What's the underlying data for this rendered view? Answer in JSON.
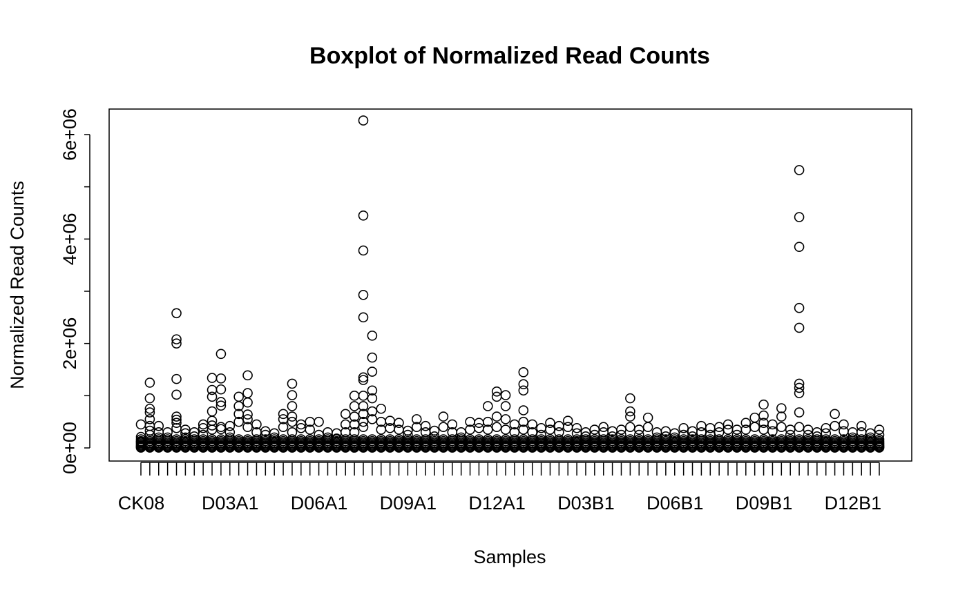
{
  "chart_data": {
    "type": "boxplot",
    "title": "Boxplot of Normalized Read Counts",
    "xlabel": "Samples",
    "ylabel": "Normalized Read Counts",
    "ylim": [
      -250000,
      6500000
    ],
    "y_ticks": [
      0,
      2000000,
      4000000,
      6000000
    ],
    "y_tick_labels": [
      "0e+00",
      "2e+06",
      "4e+06",
      "6e+06"
    ],
    "y_minor_ticks": [
      1000000,
      3000000,
      5000000
    ],
    "n_samples": 84,
    "x_tick_labels": [
      {
        "sample": 1,
        "label": "CK08"
      },
      {
        "sample": 11,
        "label": "D03A1"
      },
      {
        "sample": 21,
        "label": "D06A1"
      },
      {
        "sample": 31,
        "label": "D09A1"
      },
      {
        "sample": 41,
        "label": "D12A1"
      },
      {
        "sample": 51,
        "label": "D03B1"
      },
      {
        "sample": 61,
        "label": "D06B1"
      },
      {
        "sample": 71,
        "label": "D09B1"
      },
      {
        "sample": 81,
        "label": "D12B1"
      }
    ],
    "outliers": [
      {
        "sample": 1,
        "values": [
          450000,
          210000,
          120000
        ]
      },
      {
        "sample": 2,
        "values": [
          1250000,
          950000,
          750000,
          680000,
          550000,
          420000,
          330000,
          250000
        ]
      },
      {
        "sample": 3,
        "values": [
          420000,
          300000,
          200000
        ]
      },
      {
        "sample": 4,
        "values": [
          300000,
          200000
        ]
      },
      {
        "sample": 5,
        "values": [
          2580000,
          2080000,
          2000000,
          1320000,
          1020000,
          600000,
          540000,
          480000,
          380000
        ]
      },
      {
        "sample": 6,
        "values": [
          350000,
          280000,
          200000
        ]
      },
      {
        "sample": 7,
        "values": [
          300000,
          220000
        ]
      },
      {
        "sample": 8,
        "values": [
          450000,
          380000,
          250000
        ]
      },
      {
        "sample": 9,
        "values": [
          1340000,
          1110000,
          980000,
          700000,
          520000,
          430000,
          350000
        ]
      },
      {
        "sample": 10,
        "values": [
          1800000,
          1330000,
          1120000,
          880000,
          810000,
          400000,
          360000
        ]
      },
      {
        "sample": 11,
        "values": [
          420000,
          300000,
          200000
        ]
      },
      {
        "sample": 12,
        "values": [
          980000,
          800000,
          650000,
          500000
        ]
      },
      {
        "sample": 13,
        "values": [
          1390000,
          1050000,
          870000,
          640000,
          550000,
          400000
        ]
      },
      {
        "sample": 14,
        "values": [
          450000,
          300000
        ]
      },
      {
        "sample": 15,
        "values": [
          320000,
          250000
        ]
      },
      {
        "sample": 16,
        "values": [
          280000,
          200000
        ]
      },
      {
        "sample": 17,
        "values": [
          650000,
          550000,
          400000
        ]
      },
      {
        "sample": 18,
        "values": [
          1230000,
          1010000,
          800000,
          600000,
          500000,
          300000
        ]
      },
      {
        "sample": 19,
        "values": [
          450000,
          380000
        ]
      },
      {
        "sample": 20,
        "values": [
          500000,
          350000
        ]
      },
      {
        "sample": 21,
        "values": [
          500000,
          250000
        ]
      },
      {
        "sample": 22,
        "values": [
          300000,
          200000
        ]
      },
      {
        "sample": 23,
        "values": [
          280000,
          180000
        ]
      },
      {
        "sample": 24,
        "values": [
          650000,
          450000,
          300000
        ]
      },
      {
        "sample": 25,
        "values": [
          1000000,
          800000,
          600000,
          450000,
          300000
        ]
      },
      {
        "sample": 26,
        "values": [
          6270000,
          4450000,
          3780000,
          2930000,
          2500000,
          1350000,
          1300000,
          1000000,
          800000,
          650000,
          500000,
          400000
        ]
      },
      {
        "sample": 27,
        "values": [
          2150000,
          1730000,
          1460000,
          1100000,
          950000,
          700000,
          550000
        ]
      },
      {
        "sample": 28,
        "values": [
          750000,
          500000,
          350000
        ]
      },
      {
        "sample": 29,
        "values": [
          520000,
          380000
        ]
      },
      {
        "sample": 30,
        "values": [
          480000,
          350000
        ]
      },
      {
        "sample": 31,
        "values": [
          330000,
          250000
        ]
      },
      {
        "sample": 32,
        "values": [
          550000,
          400000
        ]
      },
      {
        "sample": 33,
        "values": [
          420000,
          300000
        ]
      },
      {
        "sample": 34,
        "values": [
          330000,
          220000
        ]
      },
      {
        "sample": 35,
        "values": [
          600000,
          400000
        ]
      },
      {
        "sample": 36,
        "values": [
          450000,
          300000
        ]
      },
      {
        "sample": 37,
        "values": [
          300000,
          200000
        ]
      },
      {
        "sample": 38,
        "values": [
          500000,
          350000
        ]
      },
      {
        "sample": 39,
        "values": [
          480000,
          380000
        ]
      },
      {
        "sample": 40,
        "values": [
          800000,
          500000,
          350000
        ]
      },
      {
        "sample": 41,
        "values": [
          1080000,
          980000,
          600000,
          400000
        ]
      },
      {
        "sample": 42,
        "values": [
          1010000,
          800000,
          550000,
          350000
        ]
      },
      {
        "sample": 43,
        "values": [
          450000,
          300000
        ]
      },
      {
        "sample": 44,
        "values": [
          1450000,
          1220000,
          1100000,
          720000,
          500000,
          350000
        ]
      },
      {
        "sample": 45,
        "values": [
          450000,
          300000
        ]
      },
      {
        "sample": 46,
        "values": [
          380000,
          250000
        ]
      },
      {
        "sample": 47,
        "values": [
          480000,
          350000
        ]
      },
      {
        "sample": 48,
        "values": [
          420000,
          300000
        ]
      },
      {
        "sample": 49,
        "values": [
          520000,
          400000
        ]
      },
      {
        "sample": 50,
        "values": [
          380000,
          280000
        ]
      },
      {
        "sample": 51,
        "values": [
          300000,
          220000
        ]
      },
      {
        "sample": 52,
        "values": [
          350000,
          250000
        ]
      },
      {
        "sample": 53,
        "values": [
          400000,
          300000
        ]
      },
      {
        "sample": 54,
        "values": [
          320000,
          220000
        ]
      },
      {
        "sample": 55,
        "values": [
          350000,
          250000
        ]
      },
      {
        "sample": 56,
        "values": [
          950000,
          700000,
          600000,
          400000
        ]
      },
      {
        "sample": 57,
        "values": [
          350000,
          250000
        ]
      },
      {
        "sample": 58,
        "values": [
          580000,
          400000
        ]
      },
      {
        "sample": 59,
        "values": [
          300000,
          200000
        ]
      },
      {
        "sample": 60,
        "values": [
          320000,
          220000
        ]
      },
      {
        "sample": 61,
        "values": [
          280000,
          200000
        ]
      },
      {
        "sample": 62,
        "values": [
          380000,
          250000
        ]
      },
      {
        "sample": 63,
        "values": [
          320000,
          220000
        ]
      },
      {
        "sample": 64,
        "values": [
          420000,
          300000
        ]
      },
      {
        "sample": 65,
        "values": [
          380000,
          250000
        ]
      },
      {
        "sample": 66,
        "values": [
          400000,
          300000
        ]
      },
      {
        "sample": 67,
        "values": [
          450000,
          350000
        ]
      },
      {
        "sample": 68,
        "values": [
          350000,
          250000
        ]
      },
      {
        "sample": 69,
        "values": [
          480000,
          350000
        ]
      },
      {
        "sample": 70,
        "values": [
          580000,
          400000
        ]
      },
      {
        "sample": 71,
        "values": [
          830000,
          620000,
          480000,
          350000
        ]
      },
      {
        "sample": 72,
        "values": [
          450000,
          320000
        ]
      },
      {
        "sample": 73,
        "values": [
          760000,
          600000,
          400000
        ]
      },
      {
        "sample": 74,
        "values": [
          350000,
          250000
        ]
      },
      {
        "sample": 75,
        "values": [
          5320000,
          4420000,
          3850000,
          2680000,
          2300000,
          1230000,
          1150000,
          1050000,
          680000,
          400000
        ]
      },
      {
        "sample": 76,
        "values": [
          350000,
          250000
        ]
      },
      {
        "sample": 77,
        "values": [
          300000,
          220000
        ]
      },
      {
        "sample": 78,
        "values": [
          380000,
          280000
        ]
      },
      {
        "sample": 79,
        "values": [
          650000,
          420000
        ]
      },
      {
        "sample": 80,
        "values": [
          450000,
          320000
        ]
      },
      {
        "sample": 81,
        "values": [
          300000,
          200000
        ]
      },
      {
        "sample": 82,
        "values": [
          420000,
          300000
        ]
      },
      {
        "sample": 83,
        "values": [
          280000,
          200000
        ]
      },
      {
        "sample": 84,
        "values": [
          350000,
          250000
        ]
      }
    ]
  }
}
